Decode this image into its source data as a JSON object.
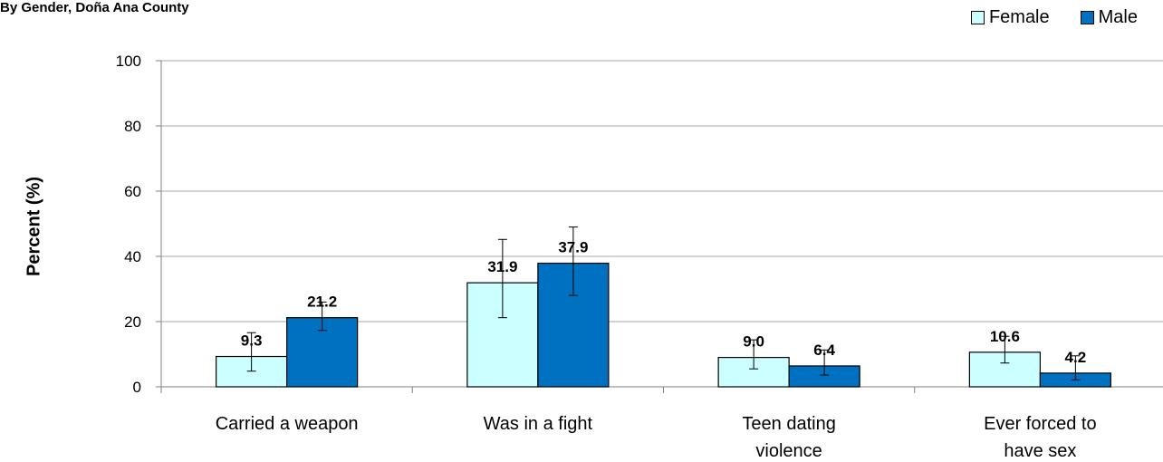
{
  "subtitle": "By Gender, Doña Ana County",
  "chart_data": {
    "type": "bar",
    "ylabel": "Percent (%)",
    "ylim": [
      0,
      100
    ],
    "yticks": [
      0,
      20,
      40,
      60,
      80,
      100
    ],
    "grid": true,
    "legend_position": "top-right",
    "categories": [
      [
        "Carried a weapon"
      ],
      [
        "Was in a fight"
      ],
      [
        "Teen dating",
        "violence"
      ],
      [
        "Ever forced to",
        "have sex"
      ]
    ],
    "series": [
      {
        "name": "Female",
        "color": "#CCFFFF",
        "values": [
          9.3,
          31.9,
          9.0,
          10.6
        ],
        "labels": [
          "9.3",
          "31.9",
          "9.0",
          "10.6"
        ],
        "error_low": [
          4.8,
          21.2,
          5.5,
          7.3
        ],
        "error_high": [
          16.6,
          45.2,
          14.4,
          15.5
        ]
      },
      {
        "name": "Male",
        "color": "#0070C0",
        "values": [
          21.2,
          37.9,
          6.4,
          4.2
        ],
        "labels": [
          "21.2",
          "37.9",
          "6.4",
          "4.2"
        ],
        "error_low": [
          17.3,
          28.0,
          3.6,
          2.1
        ],
        "error_high": [
          26.0,
          49.0,
          11.3,
          9.5
        ]
      }
    ]
  }
}
